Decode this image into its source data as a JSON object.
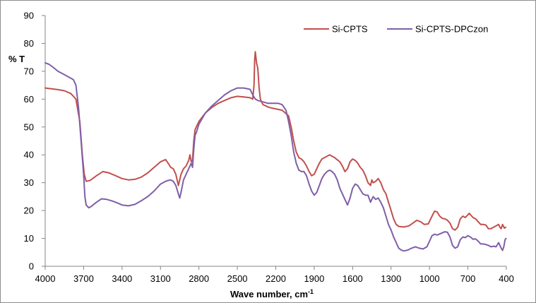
{
  "chart_data": {
    "type": "line",
    "title": "",
    "xlabel": "Wave number, cm",
    "xlabel_superscript": "-1",
    "ylabel": "% T",
    "xlim": [
      4000,
      400
    ],
    "ylim": [
      0,
      90
    ],
    "x_reversed": true,
    "x_ticks": [
      4000,
      3700,
      3400,
      3100,
      2800,
      2500,
      2200,
      1900,
      1600,
      1300,
      1000,
      700,
      400
    ],
    "y_ticks": [
      0,
      10,
      20,
      30,
      40,
      50,
      60,
      70,
      80,
      90
    ],
    "grid": false,
    "legend_position": "top-right",
    "series": [
      {
        "name": "Si-CPTS",
        "color": "#c0504d",
        "points": [
          [
            4000,
            64
          ],
          [
            3950,
            63.7
          ],
          [
            3900,
            63.4
          ],
          [
            3850,
            63
          ],
          [
            3800,
            62
          ],
          [
            3760,
            60
          ],
          [
            3730,
            52
          ],
          [
            3710,
            40
          ],
          [
            3695,
            33
          ],
          [
            3680,
            30.5
          ],
          [
            3650,
            30.8
          ],
          [
            3600,
            32.5
          ],
          [
            3550,
            34
          ],
          [
            3500,
            33.5
          ],
          [
            3450,
            32.5
          ],
          [
            3400,
            31.5
          ],
          [
            3350,
            31
          ],
          [
            3300,
            31.2
          ],
          [
            3250,
            32
          ],
          [
            3200,
            33.5
          ],
          [
            3150,
            35.5
          ],
          [
            3100,
            37.5
          ],
          [
            3060,
            38.3
          ],
          [
            3040,
            37
          ],
          [
            3020,
            35.5
          ],
          [
            3000,
            35
          ],
          [
            2980,
            33
          ],
          [
            2960,
            29
          ],
          [
            2940,
            33
          ],
          [
            2920,
            35
          ],
          [
            2900,
            36
          ],
          [
            2880,
            38
          ],
          [
            2870,
            40
          ],
          [
            2860,
            37.5
          ],
          [
            2850,
            38
          ],
          [
            2840,
            45
          ],
          [
            2830,
            49
          ],
          [
            2820,
            50
          ],
          [
            2800,
            52
          ],
          [
            2750,
            55
          ],
          [
            2700,
            57
          ],
          [
            2650,
            58.5
          ],
          [
            2600,
            59.5
          ],
          [
            2550,
            60.5
          ],
          [
            2500,
            61
          ],
          [
            2450,
            60.8
          ],
          [
            2400,
            60.5
          ],
          [
            2380,
            60
          ],
          [
            2370,
            65
          ],
          [
            2365,
            74
          ],
          [
            2360,
            77
          ],
          [
            2350,
            73
          ],
          [
            2340,
            71
          ],
          [
            2330,
            64
          ],
          [
            2320,
            60
          ],
          [
            2300,
            58
          ],
          [
            2250,
            57
          ],
          [
            2200,
            56.5
          ],
          [
            2150,
            56
          ],
          [
            2100,
            54
          ],
          [
            2080,
            50
          ],
          [
            2060,
            45
          ],
          [
            2040,
            41
          ],
          [
            2020,
            39
          ],
          [
            2000,
            38.5
          ],
          [
            1980,
            37.5
          ],
          [
            1960,
            36
          ],
          [
            1940,
            34
          ],
          [
            1920,
            32.5
          ],
          [
            1900,
            33
          ],
          [
            1880,
            35
          ],
          [
            1860,
            37
          ],
          [
            1840,
            38.5
          ],
          [
            1800,
            39.5
          ],
          [
            1780,
            40
          ],
          [
            1760,
            39.5
          ],
          [
            1740,
            39
          ],
          [
            1700,
            37.5
          ],
          [
            1680,
            36
          ],
          [
            1660,
            34
          ],
          [
            1640,
            35
          ],
          [
            1620,
            37.5
          ],
          [
            1600,
            38.5
          ],
          [
            1580,
            38
          ],
          [
            1560,
            37
          ],
          [
            1540,
            35.5
          ],
          [
            1520,
            34.5
          ],
          [
            1500,
            32.5
          ],
          [
            1480,
            30
          ],
          [
            1460,
            29
          ],
          [
            1450,
            31
          ],
          [
            1440,
            30
          ],
          [
            1420,
            30.5
          ],
          [
            1400,
            31.5
          ],
          [
            1380,
            30
          ],
          [
            1360,
            27.5
          ],
          [
            1340,
            26
          ],
          [
            1320,
            23
          ],
          [
            1300,
            20
          ],
          [
            1280,
            17
          ],
          [
            1260,
            15
          ],
          [
            1240,
            14.3
          ],
          [
            1200,
            14.1
          ],
          [
            1160,
            14.5
          ],
          [
            1130,
            15.5
          ],
          [
            1100,
            16.5
          ],
          [
            1070,
            16
          ],
          [
            1040,
            15
          ],
          [
            1010,
            15.2
          ],
          [
            980,
            18
          ],
          [
            960,
            19.8
          ],
          [
            940,
            19.5
          ],
          [
            920,
            18
          ],
          [
            900,
            17.2
          ],
          [
            880,
            17
          ],
          [
            860,
            16.5
          ],
          [
            840,
            15.5
          ],
          [
            820,
            13.5
          ],
          [
            800,
            13
          ],
          [
            780,
            14
          ],
          [
            760,
            17
          ],
          [
            740,
            18
          ],
          [
            720,
            17.5
          ],
          [
            700,
            18.5
          ],
          [
            690,
            19
          ],
          [
            680,
            18.5
          ],
          [
            660,
            17.5
          ],
          [
            640,
            17
          ],
          [
            620,
            16
          ],
          [
            600,
            15
          ],
          [
            580,
            15
          ],
          [
            560,
            14.8
          ],
          [
            540,
            13.5
          ],
          [
            520,
            13.5
          ],
          [
            500,
            14
          ],
          [
            480,
            14.5
          ],
          [
            460,
            15
          ],
          [
            450,
            14
          ],
          [
            440,
            13.5
          ],
          [
            430,
            15
          ],
          [
            415,
            13.7
          ],
          [
            405,
            14
          ]
        ]
      },
      {
        "name": "Si-CPTS-DPCzon",
        "color": "#7f5fa8",
        "points": [
          [
            4000,
            73
          ],
          [
            3970,
            72.5
          ],
          [
            3940,
            71.5
          ],
          [
            3900,
            70
          ],
          [
            3860,
            69
          ],
          [
            3820,
            68
          ],
          [
            3780,
            67
          ],
          [
            3760,
            65
          ],
          [
            3740,
            57
          ],
          [
            3720,
            45
          ],
          [
            3700,
            33
          ],
          [
            3690,
            25
          ],
          [
            3680,
            22
          ],
          [
            3660,
            21
          ],
          [
            3640,
            21.5
          ],
          [
            3600,
            23
          ],
          [
            3560,
            24.2
          ],
          [
            3520,
            24
          ],
          [
            3480,
            23.5
          ],
          [
            3440,
            22.8
          ],
          [
            3400,
            22
          ],
          [
            3350,
            21.7
          ],
          [
            3300,
            22.2
          ],
          [
            3250,
            23.5
          ],
          [
            3200,
            25
          ],
          [
            3150,
            27
          ],
          [
            3100,
            29.5
          ],
          [
            3060,
            30.5
          ],
          [
            3040,
            30.8
          ],
          [
            3020,
            31
          ],
          [
            3000,
            30.5
          ],
          [
            2980,
            29
          ],
          [
            2960,
            26
          ],
          [
            2950,
            24.5
          ],
          [
            2940,
            26.5
          ],
          [
            2920,
            31
          ],
          [
            2900,
            33
          ],
          [
            2880,
            35
          ],
          [
            2860,
            37
          ],
          [
            2850,
            35.5
          ],
          [
            2840,
            42
          ],
          [
            2830,
            47
          ],
          [
            2820,
            48
          ],
          [
            2800,
            51
          ],
          [
            2750,
            55
          ],
          [
            2700,
            57.5
          ],
          [
            2650,
            59.5
          ],
          [
            2600,
            61.5
          ],
          [
            2550,
            63
          ],
          [
            2500,
            64
          ],
          [
            2450,
            64
          ],
          [
            2400,
            63.5
          ],
          [
            2380,
            61.5
          ],
          [
            2360,
            60
          ],
          [
            2340,
            59.5
          ],
          [
            2300,
            59
          ],
          [
            2260,
            58.5
          ],
          [
            2220,
            58.5
          ],
          [
            2180,
            58.5
          ],
          [
            2150,
            58
          ],
          [
            2120,
            56
          ],
          [
            2100,
            52
          ],
          [
            2080,
            47
          ],
          [
            2060,
            41
          ],
          [
            2040,
            37
          ],
          [
            2020,
            34.5
          ],
          [
            2000,
            34
          ],
          [
            1980,
            34
          ],
          [
            1960,
            32.5
          ],
          [
            1940,
            29.5
          ],
          [
            1920,
            27
          ],
          [
            1900,
            25.5
          ],
          [
            1880,
            26.5
          ],
          [
            1860,
            29
          ],
          [
            1840,
            31.5
          ],
          [
            1820,
            33
          ],
          [
            1800,
            34
          ],
          [
            1780,
            34.5
          ],
          [
            1760,
            34
          ],
          [
            1740,
            33
          ],
          [
            1720,
            31
          ],
          [
            1700,
            28
          ],
          [
            1680,
            26
          ],
          [
            1660,
            24
          ],
          [
            1640,
            22
          ],
          [
            1620,
            24.5
          ],
          [
            1600,
            28
          ],
          [
            1580,
            29.5
          ],
          [
            1560,
            29
          ],
          [
            1540,
            27.5
          ],
          [
            1520,
            26
          ],
          [
            1500,
            25.5
          ],
          [
            1480,
            25.5
          ],
          [
            1460,
            23
          ],
          [
            1450,
            24
          ],
          [
            1440,
            25
          ],
          [
            1420,
            24
          ],
          [
            1400,
            24.5
          ],
          [
            1380,
            23
          ],
          [
            1360,
            21
          ],
          [
            1340,
            18
          ],
          [
            1320,
            15
          ],
          [
            1300,
            13
          ],
          [
            1280,
            10.5
          ],
          [
            1260,
            8.5
          ],
          [
            1240,
            6.5
          ],
          [
            1220,
            5.8
          ],
          [
            1200,
            5.5
          ],
          [
            1170,
            5.8
          ],
          [
            1140,
            6.5
          ],
          [
            1110,
            7
          ],
          [
            1080,
            6.5
          ],
          [
            1050,
            6.2
          ],
          [
            1020,
            7
          ],
          [
            1000,
            9
          ],
          [
            980,
            11
          ],
          [
            960,
            11.5
          ],
          [
            940,
            11.2
          ],
          [
            900,
            12
          ],
          [
            880,
            12.4
          ],
          [
            860,
            12.2
          ],
          [
            840,
            10.5
          ],
          [
            820,
            7.5
          ],
          [
            800,
            6.5
          ],
          [
            780,
            7
          ],
          [
            760,
            9.5
          ],
          [
            740,
            10.5
          ],
          [
            720,
            10.3
          ],
          [
            700,
            11
          ],
          [
            680,
            10.5
          ],
          [
            660,
            9.7
          ],
          [
            640,
            9.8
          ],
          [
            620,
            9
          ],
          [
            600,
            8
          ],
          [
            580,
            8
          ],
          [
            560,
            7.8
          ],
          [
            540,
            7.5
          ],
          [
            520,
            7
          ],
          [
            500,
            7.2
          ],
          [
            480,
            7
          ],
          [
            460,
            8.5
          ],
          [
            450,
            7.5
          ],
          [
            440,
            6.5
          ],
          [
            430,
            5.7
          ],
          [
            420,
            7
          ],
          [
            410,
            9.5
          ],
          [
            403,
            10
          ]
        ]
      }
    ]
  }
}
